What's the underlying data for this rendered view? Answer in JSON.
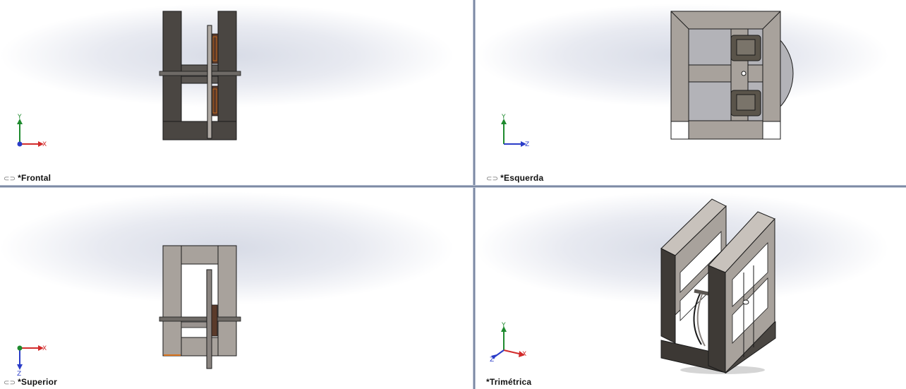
{
  "views": {
    "frontal": {
      "label": "*Frontal",
      "axes": {
        "up": "Y",
        "right": "X"
      }
    },
    "esquerda": {
      "label": "*Esquerda",
      "axes": {
        "up": "Y",
        "right": "Z"
      }
    },
    "superior": {
      "label": "*Superior",
      "axes": {
        "right": "X",
        "down": "Z"
      }
    },
    "trimetrica": {
      "label": "*Trimétrica",
      "axes": {
        "up": "Y",
        "right": "X",
        "left": "Z"
      }
    }
  },
  "colors": {
    "axis_x": "#d22b2b",
    "axis_y": "#1e8a2e",
    "axis_z": "#2a3cc8",
    "part_dark": "#4a4642",
    "part_light": "#a8a29c",
    "part_edge": "#1a1a1a",
    "accent_orange": "#d8731c"
  },
  "icons": {
    "link": "link-icon"
  }
}
